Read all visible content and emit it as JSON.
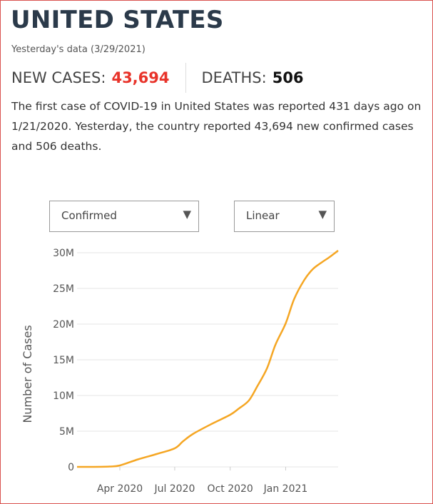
{
  "header": {
    "title": "UNITED STATES",
    "subtitle": "Yesterday's data (3/29/2021)"
  },
  "stats": {
    "cases_label": "NEW CASES:",
    "cases_value": "43,694",
    "deaths_label": "DEATHS:",
    "deaths_value": "506"
  },
  "description": "The first case of COVID-19 in United States was reported 431 days ago on 1/21/2020. Yesterday, the country reported 43,694 new confirmed cases and 506 deaths.",
  "controls": {
    "metric_value": "Confirmed",
    "scale_value": "Linear",
    "arrow_icon": "▼"
  },
  "chart_data": {
    "type": "line",
    "title": "",
    "xlabel": "",
    "ylabel": "Number of Cases",
    "scale": "linear",
    "ylim": [
      0,
      30000000
    ],
    "yticks": [
      0,
      5000000,
      10000000,
      15000000,
      20000000,
      25000000,
      30000000
    ],
    "ytick_labels": [
      "0",
      "5M",
      "10M",
      "15M",
      "20M",
      "25M",
      "30M"
    ],
    "xticks": [
      "2020-04-01",
      "2020-07-01",
      "2020-10-01",
      "2021-01-01"
    ],
    "xtick_labels": [
      "Apr 2020",
      "Jul 2020",
      "Oct 2020",
      "Jan 2021"
    ],
    "xlim": [
      "2020-01-21",
      "2021-03-29"
    ],
    "grid": true,
    "line_color": "#f5a623",
    "series": [
      {
        "name": "",
        "x": [
          "2020-01-21",
          "2020-02-15",
          "2020-03-15",
          "2020-04-01",
          "2020-05-01",
          "2020-06-01",
          "2020-07-01",
          "2020-07-15",
          "2020-08-01",
          "2020-09-01",
          "2020-10-01",
          "2020-10-15",
          "2020-11-01",
          "2020-11-15",
          "2020-12-01",
          "2020-12-15",
          "2021-01-01",
          "2021-01-15",
          "2021-02-01",
          "2021-02-15",
          "2021-03-01",
          "2021-03-15",
          "2021-03-29"
        ],
        "y": [
          0,
          15,
          50000,
          200000,
          1050000,
          1800000,
          2600000,
          3600000,
          4650000,
          6050000,
          7300000,
          8150000,
          9300000,
          11300000,
          13800000,
          17100000,
          20100000,
          23500000,
          26200000,
          27700000,
          28600000,
          29400000,
          30300000
        ]
      }
    ]
  }
}
